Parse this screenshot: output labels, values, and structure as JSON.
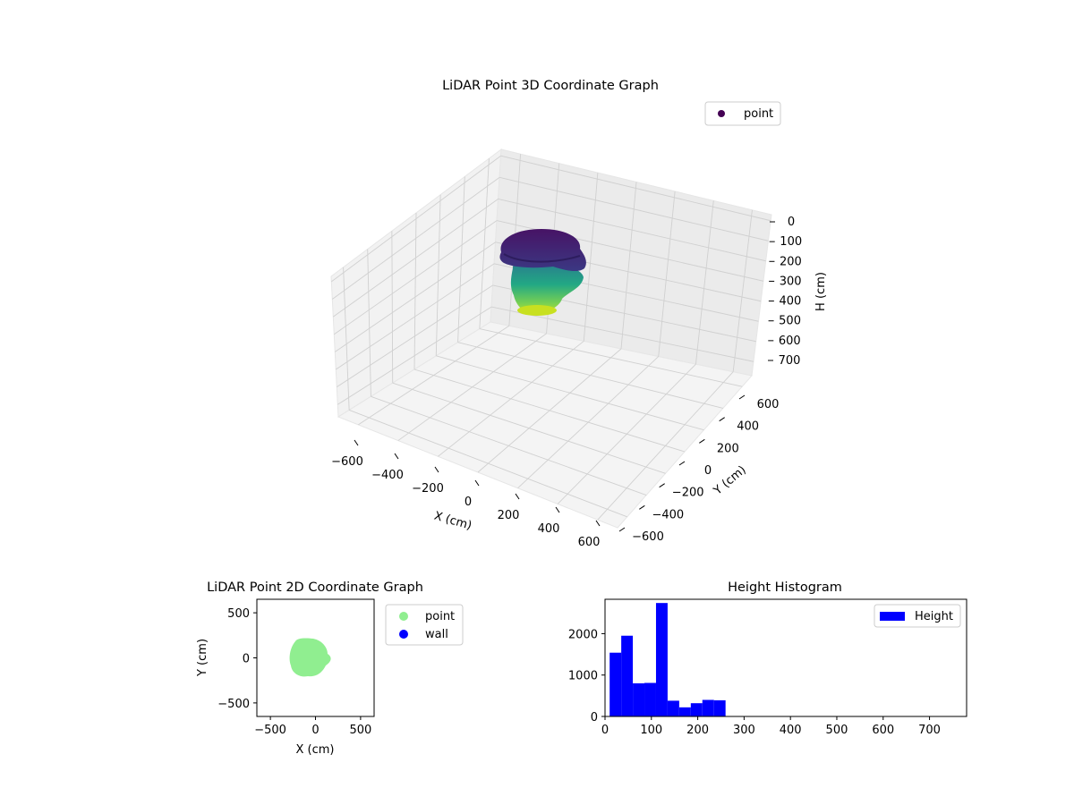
{
  "chart_data": [
    {
      "type": "scatter",
      "title": "LiDAR Point 3D Coordinate Graph",
      "xlabel": "X (cm)",
      "ylabel": "Y (cm)",
      "zlabel": "H (cm)",
      "xticks": [
        "−600",
        "−400",
        "−200",
        "0",
        "200",
        "400",
        "600"
      ],
      "yticks": [
        "−600",
        "−400",
        "−200",
        "0",
        "200",
        "400",
        "600"
      ],
      "zticks": [
        "0",
        "100",
        "200",
        "300",
        "400",
        "500",
        "600",
        "700"
      ],
      "xlim": [
        -650,
        650
      ],
      "ylim": [
        -650,
        650
      ],
      "zlim": [
        750,
        0
      ],
      "legend": [
        {
          "label": "point",
          "color": "#440154"
        }
      ],
      "legend_position": "top-right",
      "grid": true,
      "colormap": "viridis",
      "point_cloud": {
        "x_range": [
          -300,
          200
        ],
        "y_range": [
          -200,
          200
        ],
        "h_range": [
          0,
          300
        ]
      }
    },
    {
      "type": "scatter",
      "title": "LiDAR Point 2D Coordinate Graph",
      "xlabel": "X (cm)",
      "ylabel": "Y (cm)",
      "xticks": [
        "−500",
        "0",
        "500"
      ],
      "yticks": [
        "500",
        "0",
        "−500"
      ],
      "xlim": [
        -650,
        650
      ],
      "ylim": [
        -650,
        650
      ],
      "legend": [
        {
          "label": "point",
          "color": "#90ee90"
        },
        {
          "label": "wall",
          "color": "#0000ff"
        }
      ],
      "legend_position": "outside-right",
      "grid": false
    },
    {
      "type": "bar",
      "title": "Height Histogram",
      "xticks": [
        "0",
        "100",
        "200",
        "300",
        "400",
        "500",
        "600",
        "700"
      ],
      "yticks": [
        "0",
        "1000",
        "2000"
      ],
      "xlim": [
        0,
        780
      ],
      "ylim": [
        0,
        2830
      ],
      "bin_edges": [
        10,
        35,
        60,
        85,
        110,
        135,
        160,
        185,
        210,
        235,
        260,
        285
      ],
      "values": [
        1540,
        1950,
        800,
        810,
        2740,
        380,
        220,
        320,
        400,
        390,
        0
      ],
      "series": [
        {
          "name": "Height",
          "color": "#0000ff"
        }
      ],
      "legend_position": "top-right",
      "grid": false
    }
  ]
}
